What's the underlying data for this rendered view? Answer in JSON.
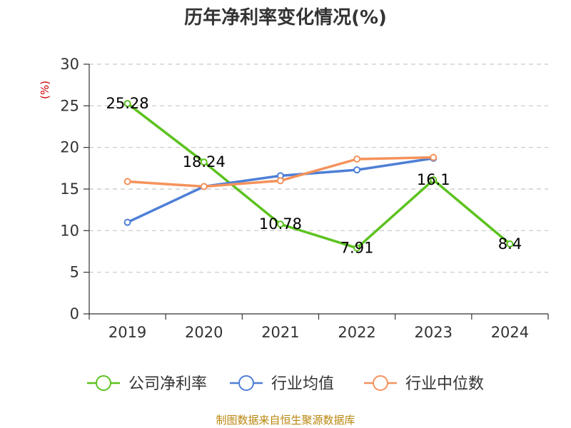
{
  "chart_data": {
    "type": "line",
    "title": "历年净利率变化情况(%)",
    "ylabel": "(%)",
    "ylim": [
      0,
      30
    ],
    "yticks": [
      0,
      5,
      10,
      15,
      20,
      25,
      30
    ],
    "categories": [
      "2019",
      "2020",
      "2021",
      "2022",
      "2023",
      "2024"
    ],
    "grid": true,
    "legend_position": "bottom",
    "series": [
      {
        "name": "公司净利率",
        "color": "#5cc21f",
        "values": [
          25.28,
          18.24,
          10.78,
          7.91,
          16.1,
          8.4
        ],
        "labels": [
          "25.28",
          "18.24",
          "10.78",
          "7.91",
          "16.1",
          "8.4"
        ]
      },
      {
        "name": "行业均值",
        "color": "#4e7fd6",
        "values": [
          11.0,
          15.3,
          16.6,
          17.3,
          18.7,
          null
        ]
      },
      {
        "name": "行业中位数",
        "color": "#f5925b",
        "values": [
          15.9,
          15.3,
          16.0,
          18.6,
          18.8,
          null
        ]
      }
    ],
    "source": "制图数据来自恒生聚源数据库"
  }
}
